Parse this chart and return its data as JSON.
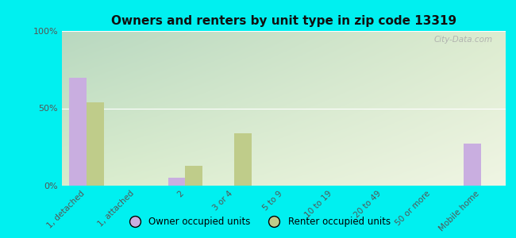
{
  "title": "Owners and renters by unit type in zip code 13319",
  "categories": [
    "1, detached",
    "1, attached",
    "2",
    "3 or 4",
    "5 to 9",
    "10 to 19",
    "20 to 49",
    "50 or more",
    "Mobile home"
  ],
  "owner_values": [
    70,
    0,
    5,
    0,
    0,
    0,
    0,
    0,
    27
  ],
  "renter_values": [
    54,
    0,
    13,
    34,
    0,
    0,
    0,
    0,
    0
  ],
  "owner_color": "#c9aee0",
  "renter_color": "#bfcc8a",
  "background_color": "#00f0f0",
  "ylim": [
    0,
    100
  ],
  "yticks": [
    0,
    50,
    100
  ],
  "ytick_labels": [
    "0%",
    "50%",
    "100%"
  ],
  "bar_width": 0.35,
  "legend_owner": "Owner occupied units",
  "legend_renter": "Renter occupied units",
  "watermark": "City-Data.com",
  "grad_top_left": "#b8d8c0",
  "grad_top_right": "#e8f0d8",
  "grad_bottom": "#f5f8e8"
}
